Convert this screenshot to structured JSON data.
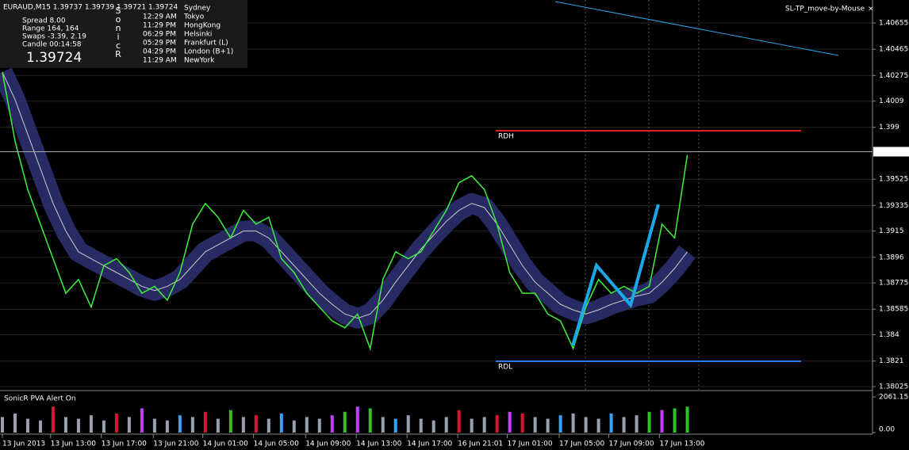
{
  "header": {
    "symbol": "EURAUD,M15  1.39737 1.39739 1.39721 1.39724",
    "tool": "SL-TP_move-by-Mouse"
  },
  "info": {
    "rows": [
      "Spread  8.00",
      "Range  164, 164",
      "Swaps  -3.39, 2.19",
      "Candle  00:14:58"
    ],
    "price": "1.39724",
    "letters": [
      "S",
      "o",
      "n",
      "i",
      "c",
      "R"
    ],
    "sessions": [
      {
        "time": "",
        "city": "Sydney"
      },
      {
        "time": "12:29 AM",
        "city": "Tokyo"
      },
      {
        "time": "11:29 PM",
        "city": "HongKong"
      },
      {
        "time": "06:29 PM",
        "city": "Helsinki"
      },
      {
        "time": "05:29 PM",
        "city": "Frankfurt  (L)"
      },
      {
        "time": "04:29 PM",
        "city": "London  (B+1)"
      },
      {
        "time": "11:29 AM",
        "city": "NewYork"
      }
    ]
  },
  "levels": {
    "high": "RDH",
    "low": "RDL"
  },
  "chart_data": {
    "type": "line",
    "color": "#3cf03c",
    "band_color": "#2c2f6e",
    "xlim": [
      0,
      68.6
    ],
    "xticks": [
      {
        "value": 0,
        "label": "13 Jun 2013"
      },
      {
        "value": 3.8,
        "label": "13 Jun 13:00"
      },
      {
        "value": 7.8,
        "label": "13 Jun 17:00"
      },
      {
        "value": 11.9,
        "label": "13 Jun 21:00"
      },
      {
        "value": 15.8,
        "label": "14 Jun 01:00"
      },
      {
        "value": 19.8,
        "label": "14 Jun 05:00"
      },
      {
        "value": 23.9,
        "label": "14 Jun 09:00"
      },
      {
        "value": 27.9,
        "label": "14 Jun 13:00"
      },
      {
        "value": 31.9,
        "label": "14 Jun 17:00"
      },
      {
        "value": 35.9,
        "label": "16 Jun 21:01"
      },
      {
        "value": 39.8,
        "label": "17 Jun 01:00"
      },
      {
        "value": 43.9,
        "label": "17 Jun 05:00"
      },
      {
        "value": 47.8,
        "label": "17 Jun 09:00"
      },
      {
        "value": 51.8,
        "label": "17 Jun 13:00"
      }
    ],
    "ylim": [
      1.38002,
      1.40821
    ],
    "yticks": [
      1.40655,
      1.40465,
      1.40275,
      1.4009,
      1.399,
      1.39525,
      1.39335,
      1.3915,
      1.3896,
      1.38775,
      1.38585,
      1.384,
      1.3821,
      1.38025
    ],
    "current_price": 1.39724,
    "close": [
      1.403,
      1.398,
      1.3945,
      1.392,
      1.3895,
      1.387,
      1.388,
      1.386,
      1.389,
      1.3895,
      1.3885,
      1.387,
      1.3875,
      1.3865,
      1.3885,
      1.392,
      1.3935,
      1.3925,
      1.391,
      1.393,
      1.392,
      1.3925,
      1.3895,
      1.3885,
      1.387,
      1.386,
      1.385,
      1.3845,
      1.3855,
      1.383,
      1.388,
      1.39,
      1.3895,
      1.39,
      1.3915,
      1.393,
      1.395,
      1.3955,
      1.3945,
      1.392,
      1.3885,
      1.387,
      1.387,
      1.3855,
      1.385,
      1.383,
      1.386,
      1.388,
      1.387,
      1.3875,
      1.387,
      1.3875,
      1.392,
      1.391,
      1.397
    ],
    "band": [
      1.403,
      1.401,
      1.3985,
      1.396,
      1.3935,
      1.3915,
      1.39,
      1.3895,
      1.389,
      1.3885,
      1.388,
      1.3875,
      1.3872,
      1.3875,
      1.388,
      1.389,
      1.39,
      1.3905,
      1.391,
      1.3915,
      1.3915,
      1.391,
      1.39,
      1.389,
      1.388,
      1.387,
      1.3862,
      1.3855,
      1.3852,
      1.3855,
      1.3865,
      1.3878,
      1.389,
      1.3902,
      1.3912,
      1.3922,
      1.393,
      1.3935,
      1.3932,
      1.392,
      1.3905,
      1.389,
      1.3878,
      1.387,
      1.3862,
      1.3858,
      1.3855,
      1.3858,
      1.3862,
      1.3865,
      1.3868,
      1.387,
      1.3878,
      1.3888,
      1.39
    ],
    "volume": {
      "title": "SonicR PVA   Alert On",
      "ylim": [
        0,
        2200
      ],
      "yticks": [
        {
          "value": 2061.15,
          "label": "2061.15"
        },
        {
          "value": 0,
          "label": "0.00"
        }
      ],
      "values": [
        900,
        1100,
        800,
        700,
        1500,
        900,
        800,
        1000,
        700,
        1100,
        900,
        1400,
        800,
        700,
        1000,
        900,
        1200,
        800,
        1300,
        900,
        1000,
        800,
        1100,
        700,
        900,
        800,
        1000,
        1200,
        1500,
        1400,
        900,
        800,
        1000,
        800,
        700,
        900,
        1300,
        800,
        900,
        1000,
        1200,
        1100,
        900,
        800,
        1000,
        1100,
        900,
        800,
        1100,
        900,
        1000,
        1200,
        1300,
        1400,
        1500
      ],
      "colors": [
        "#9aa0b0",
        "#9aa0b0",
        "#9aa0b0",
        "#9aa0b0",
        "#e01030",
        "#9aa0b0",
        "#9aa0b0",
        "#9aa0b0",
        "#9aa0b0",
        "#e01030",
        "#9aa0b0",
        "#c040ff",
        "#9aa0b0",
        "#9aa0b0",
        "#3aa0ff",
        "#9aa0b0",
        "#e01030",
        "#9aa0b0",
        "#30c030",
        "#9aa0b0",
        "#e01030",
        "#9aa0b0",
        "#3aa0ff",
        "#9aa0b0",
        "#9aa0b0",
        "#9aa0b0",
        "#c040ff",
        "#30c030",
        "#c040ff",
        "#30c030",
        "#9aa0b0",
        "#3aa0ff",
        "#9aa0b0",
        "#9aa0b0",
        "#9aa0b0",
        "#9aa0b0",
        "#e01030",
        "#9aa0b0",
        "#9aa0b0",
        "#e01030",
        "#c040ff",
        "#e01030",
        "#9aa0b0",
        "#9aa0b0",
        "#3aa0ff",
        "#9aa0b0",
        "#9aa0b0",
        "#9aa0b0",
        "#3aa0ff",
        "#9aa0b0",
        "#9aa0b0",
        "#30c030",
        "#c040ff",
        "#30c030",
        "#30c030"
      ]
    }
  }
}
